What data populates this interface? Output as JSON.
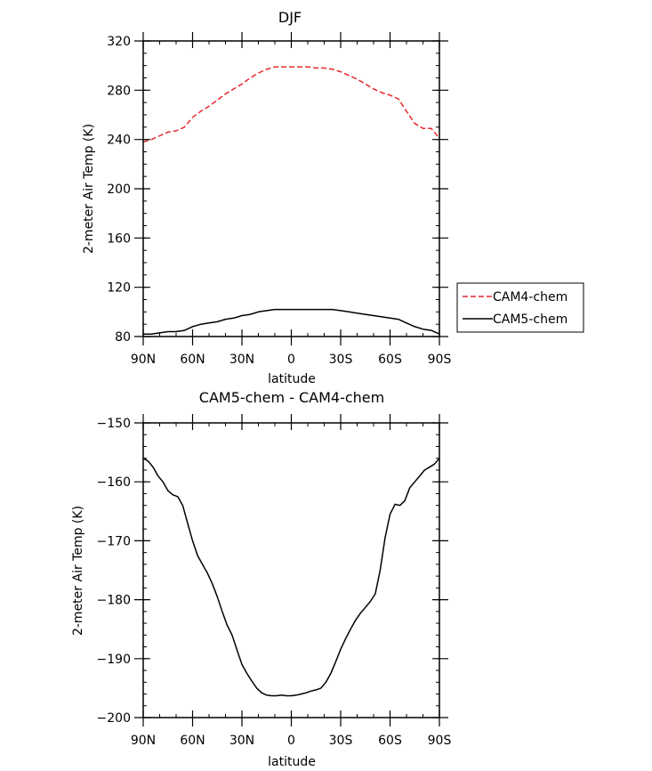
{
  "chart_data": [
    {
      "type": "line",
      "title": "DJF",
      "xlabel": "latitude",
      "ylabel": "2-meter Air Temp (K)",
      "xlim": [
        -90,
        90
      ],
      "ylim": [
        80,
        320
      ],
      "x_tick_values": [
        -90,
        -60,
        -30,
        0,
        30,
        60,
        90
      ],
      "x_tick_labels": [
        "90N",
        "60N",
        "30N",
        "0",
        "30S",
        "60S",
        "90S"
      ],
      "y_ticks": [
        80,
        120,
        160,
        200,
        240,
        280,
        320
      ],
      "legend": [
        "CAM4-chem",
        "CAM5-chem"
      ],
      "legend_position": "right",
      "series": [
        {
          "name": "CAM4-chem",
          "color": "#e8262b",
          "dash": "dashed",
          "x": [
            -90,
            -85,
            -80,
            -75,
            -70,
            -65,
            -60,
            -55,
            -50,
            -45,
            -40,
            -35,
            -30,
            -25,
            -20,
            -15,
            -10,
            -5,
            0,
            5,
            10,
            15,
            20,
            25,
            30,
            35,
            40,
            45,
            50,
            55,
            60,
            65,
            70,
            75,
            80,
            85,
            90
          ],
          "values": [
            238,
            240,
            243,
            246,
            247,
            250,
            258,
            263,
            267,
            272,
            277,
            281,
            285,
            290,
            294,
            297,
            299,
            299,
            299,
            299,
            299,
            298,
            298,
            297,
            295,
            292,
            289,
            285,
            281,
            278,
            276,
            273,
            263,
            253,
            249,
            249,
            241
          ]
        },
        {
          "name": "CAM5-chem",
          "color": "#000000",
          "dash": "solid",
          "x": [
            -90,
            -85,
            -80,
            -75,
            -70,
            -65,
            -60,
            -55,
            -50,
            -45,
            -40,
            -35,
            -30,
            -25,
            -20,
            -15,
            -10,
            -5,
            0,
            5,
            10,
            15,
            20,
            25,
            30,
            35,
            40,
            45,
            50,
            55,
            60,
            65,
            70,
            75,
            80,
            85,
            90
          ],
          "values": [
            82,
            82,
            83,
            84,
            84,
            85,
            88,
            90,
            91,
            92,
            94,
            95,
            97,
            98,
            100,
            101,
            102,
            102,
            102,
            102,
            102,
            102,
            102,
            102,
            101,
            100,
            99,
            98,
            97,
            96,
            95,
            94,
            91,
            88,
            86,
            85,
            82
          ]
        }
      ]
    },
    {
      "type": "line",
      "title": "CAM5-chem - CAM4-chem",
      "xlabel": "latitude",
      "ylabel": "2-meter Air Temp (K)",
      "xlim": [
        -90,
        90
      ],
      "ylim": [
        -200,
        -150
      ],
      "x_tick_values": [
        -90,
        -60,
        -30,
        0,
        30,
        60,
        90
      ],
      "x_tick_labels": [
        "90N",
        "60N",
        "30N",
        "0",
        "30S",
        "60S",
        "90S"
      ],
      "y_ticks": [
        -200,
        -190,
        -180,
        -170,
        -160,
        -150
      ],
      "series": [
        {
          "name": "CAM5-chem - CAM4-chem",
          "color": "#000000",
          "dash": "solid",
          "x": [
            -90,
            -87,
            -84,
            -81,
            -78,
            -75,
            -72,
            -69,
            -66,
            -63,
            -60,
            -57,
            -54,
            -51,
            -48,
            -45,
            -42,
            -39,
            -36,
            -33,
            -30,
            -27,
            -24,
            -21,
            -18,
            -15,
            -12,
            -9,
            -6,
            -3,
            0,
            3,
            6,
            9,
            12,
            15,
            18,
            21,
            24,
            27,
            30,
            33,
            36,
            39,
            42,
            45,
            48,
            51,
            54,
            57,
            60,
            63,
            66,
            69,
            72,
            75,
            78,
            81,
            84,
            87,
            90
          ],
          "values": [
            -156.0,
            -156.5,
            -157.5,
            -159.0,
            -160.0,
            -161.5,
            -162.2,
            -162.5,
            -164.0,
            -167.0,
            -170.0,
            -172.5,
            -174.0,
            -175.5,
            -177.3,
            -179.5,
            -182.0,
            -184.3,
            -186.0,
            -188.5,
            -191.0,
            -192.5,
            -193.8,
            -195.0,
            -195.8,
            -196.2,
            -196.3,
            -196.3,
            -196.2,
            -196.3,
            -196.3,
            -196.2,
            -196.0,
            -195.8,
            -195.5,
            -195.3,
            -195.0,
            -194.0,
            -192.5,
            -190.5,
            -188.4,
            -186.6,
            -185.0,
            -183.5,
            -182.3,
            -181.3,
            -180.3,
            -179.0,
            -175.0,
            -169.5,
            -165.5,
            -163.8,
            -164.0,
            -163.2,
            -161.0,
            -160.0,
            -159.0,
            -158.0,
            -157.5,
            -157.0,
            -156.0
          ]
        }
      ]
    }
  ]
}
